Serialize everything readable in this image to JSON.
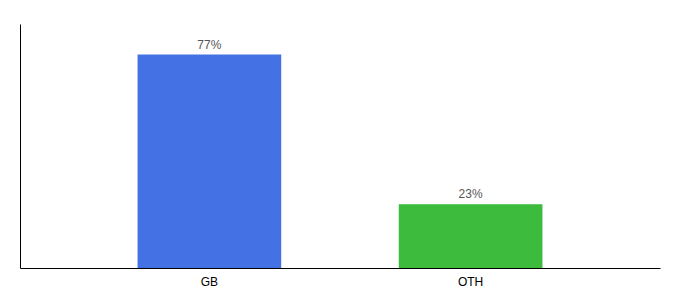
{
  "chart_data": {
    "type": "bar",
    "categories": [
      "GB",
      "OTH"
    ],
    "values": [
      77,
      23
    ],
    "value_labels": [
      "77%",
      "23%"
    ],
    "colors": [
      "#4472e4",
      "#3dbb3d"
    ],
    "ylim": [
      0,
      88
    ],
    "data_labels": true,
    "tick_labels": "x"
  }
}
